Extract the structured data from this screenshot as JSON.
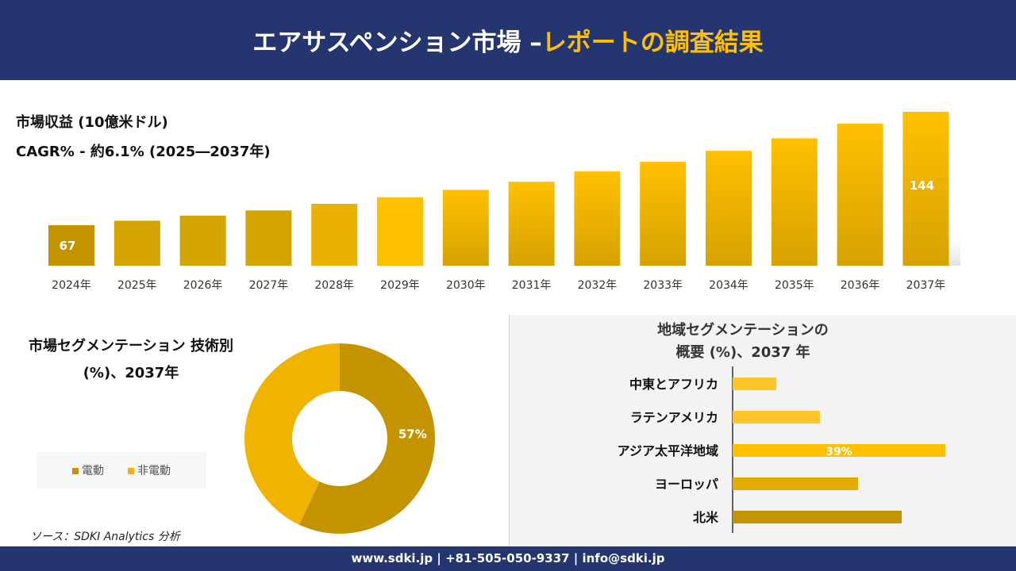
{
  "header": {
    "title_main": "エアサスペンション市場 –",
    "title_accent": "レポートの調査結果"
  },
  "colors": {
    "navy": "#243570",
    "accent": "#FFC000"
  },
  "chart_data": [
    {
      "type": "bar",
      "title": "市場収益 (10億米ドル)",
      "subtitle": "CAGR% - 約6.1% (2025―2037年)",
      "categories": [
        "2024年",
        "2025年",
        "2026年",
        "2027年",
        "2028年",
        "2029年",
        "2030年",
        "2031年",
        "2032年",
        "2033年",
        "2034年",
        "2035年",
        "2036年",
        "2037年"
      ],
      "values": [
        67,
        70,
        73.5,
        77,
        81.5,
        86,
        91,
        96.5,
        103.5,
        110,
        117.5,
        126,
        136,
        144
      ],
      "data_labels": {
        "0": "67",
        "13": "144"
      }
    },
    {
      "type": "pie",
      "title": "市場セグメンテーション 技術別 (%)、2037年",
      "slices": [
        {
          "name": "電動",
          "value": 57,
          "label": "57%",
          "color": "#C49400"
        },
        {
          "name": "非電動",
          "value": 43,
          "color": "#F0B400"
        }
      ],
      "legend": "left"
    },
    {
      "type": "bar",
      "orientation": "horizontal",
      "title_line1": "地域セグメンテーションの",
      "title_line2": "概要 (%)、2037 年",
      "categories": [
        "中東とアフリカ",
        "ラテンアメリカ",
        "アジア太平洋地域",
        "ヨーロッパ",
        "北米"
      ],
      "values": [
        8,
        16,
        39,
        23,
        31
      ],
      "data_labels": {
        "2": "39%"
      },
      "colors": [
        "#FFC526",
        "#FFC526",
        "#FFC000",
        "#E3AC00",
        "#C49400"
      ]
    }
  ],
  "source": "ソース：SDKI Analytics 分析",
  "footer": "www.sdki.jp | +81-505-050-9337 | info@sdki.jp"
}
